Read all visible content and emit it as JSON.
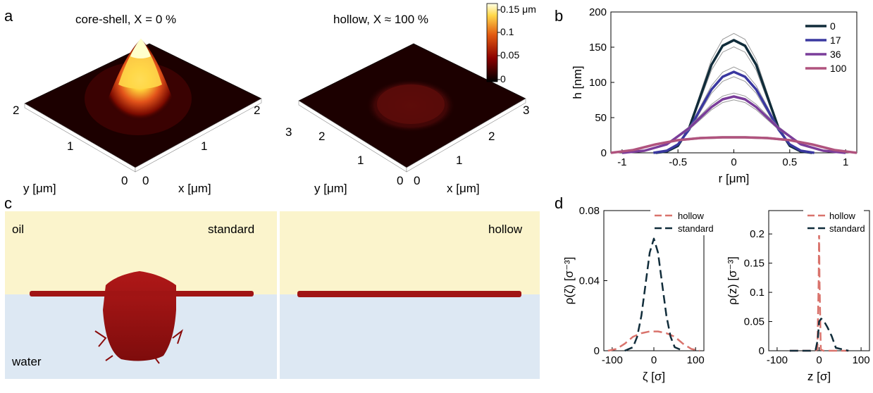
{
  "panels": {
    "a": {
      "label": "a",
      "left_title": "core-shell, X = 0 %",
      "right_title": "hollow, X ≈ 100 %",
      "left_ticks": [
        "2",
        "1",
        "0",
        "0",
        "1",
        "2"
      ],
      "right_ticks": [
        "3",
        "2",
        "1",
        "0",
        "0",
        "1",
        "2",
        "3"
      ],
      "ylabel": "y [μm]",
      "xlabel": "x [μm]",
      "colorbar_ticks": [
        "0.15 μm",
        "0.1",
        "0.05",
        "0"
      ],
      "colors": {
        "bg": "#1a0000",
        "peak": "#ffff66",
        "mid": "#d23a00"
      }
    },
    "c": {
      "label": "c",
      "oil": "oil",
      "water": "water",
      "standard": "standard",
      "hollow": "hollow",
      "colors": {
        "oil": "#fbf4cc",
        "water": "#dde8f3",
        "polymer": "#a01414"
      }
    }
  },
  "chart_data": [
    {
      "type": "line",
      "panel": "b",
      "xlabel": "r [μm]",
      "ylabel": "h [nm]",
      "xlim": [
        -1.1,
        1.1
      ],
      "ylim": [
        0,
        200
      ],
      "xticks": [
        "-1",
        "-0.5",
        "0",
        "0.5",
        "1"
      ],
      "yticks": [
        "0",
        "50",
        "100",
        "150",
        "200"
      ],
      "legend_position": "top-right",
      "series": [
        {
          "name": "0",
          "color": "#102c3a",
          "x": [
            -0.7,
            -0.6,
            -0.5,
            -0.4,
            -0.3,
            -0.2,
            -0.1,
            0,
            0.1,
            0.2,
            0.3,
            0.4,
            0.5,
            0.6,
            0.7
          ],
          "y": [
            0,
            2,
            10,
            35,
            80,
            125,
            152,
            160,
            152,
            125,
            80,
            35,
            10,
            2,
            0
          ]
        },
        {
          "name": "17",
          "color": "#3a38a0",
          "x": [
            -0.72,
            -0.6,
            -0.5,
            -0.4,
            -0.3,
            -0.2,
            -0.1,
            0,
            0.1,
            0.2,
            0.3,
            0.4,
            0.5,
            0.6,
            0.72
          ],
          "y": [
            0,
            3,
            12,
            33,
            62,
            90,
            108,
            115,
            108,
            90,
            62,
            33,
            12,
            3,
            0
          ]
        },
        {
          "name": "36",
          "color": "#7a3d9a",
          "x": [
            -1.0,
            -0.8,
            -0.6,
            -0.4,
            -0.3,
            -0.2,
            -0.1,
            0,
            0.1,
            0.2,
            0.3,
            0.4,
            0.6,
            0.8,
            1.0
          ],
          "y": [
            0,
            3,
            12,
            35,
            50,
            65,
            76,
            80,
            76,
            65,
            50,
            35,
            12,
            3,
            0
          ]
        },
        {
          "name": "100",
          "color": "#b0537e",
          "x": [
            -1.1,
            -0.9,
            -0.7,
            -0.5,
            -0.3,
            -0.1,
            0,
            0.1,
            0.3,
            0.5,
            0.7,
            0.9,
            1.1
          ],
          "y": [
            0,
            4,
            12,
            18,
            21,
            22,
            22,
            22,
            21,
            18,
            12,
            4,
            0
          ]
        }
      ]
    },
    {
      "type": "line",
      "panel": "d-left",
      "xlabel": "ζ [σ]",
      "ylabel": "ρ(ζ) [σ⁻³]",
      "xlim": [
        -120,
        120
      ],
      "ylim": [
        0,
        0.08
      ],
      "xticks": [
        "-100",
        "0",
        "100"
      ],
      "yticks": [
        "0",
        "0.04",
        "0.08"
      ],
      "legend_position": "top-right",
      "series": [
        {
          "name": "hollow",
          "color": "#d9736c",
          "x": [
            -110,
            -90,
            -70,
            -50,
            -30,
            -10,
            0,
            10,
            30,
            50,
            70,
            90,
            110
          ],
          "y": [
            0,
            0.001,
            0.004,
            0.008,
            0.01,
            0.011,
            0.011,
            0.011,
            0.01,
            0.008,
            0.004,
            0.001,
            0
          ]
        },
        {
          "name": "standard",
          "color": "#102c3a",
          "x": [
            -70,
            -50,
            -40,
            -30,
            -20,
            -10,
            0,
            10,
            20,
            30,
            40,
            50,
            70
          ],
          "y": [
            0,
            0.002,
            0.008,
            0.02,
            0.038,
            0.056,
            0.064,
            0.056,
            0.038,
            0.02,
            0.008,
            0.002,
            0
          ]
        }
      ]
    },
    {
      "type": "line",
      "panel": "d-right",
      "xlabel": "z [σ]",
      "ylabel": "ρ(z) [σ⁻³]",
      "xlim": [
        -120,
        120
      ],
      "ylim": [
        0,
        0.24
      ],
      "xticks": [
        "-100",
        "0",
        "100"
      ],
      "yticks": [
        "0",
        "0.05",
        "0.1",
        "0.15",
        "0.2"
      ],
      "legend_position": "top-right",
      "series": [
        {
          "name": "hollow",
          "color": "#d9736c",
          "x": [
            -70,
            -10,
            -4,
            -1,
            0,
            1,
            4,
            10,
            70
          ],
          "y": [
            0,
            0,
            0.002,
            0.12,
            0.21,
            0.12,
            0.002,
            0,
            0
          ]
        },
        {
          "name": "standard",
          "color": "#102c3a",
          "x": [
            -70,
            -20,
            -8,
            -3,
            0,
            5,
            12,
            20,
            30,
            40,
            70
          ],
          "y": [
            0,
            0,
            0.002,
            0.02,
            0.05,
            0.055,
            0.05,
            0.04,
            0.025,
            0.005,
            0
          ]
        }
      ]
    }
  ],
  "panel_labels": {
    "b": "b",
    "d": "d"
  }
}
